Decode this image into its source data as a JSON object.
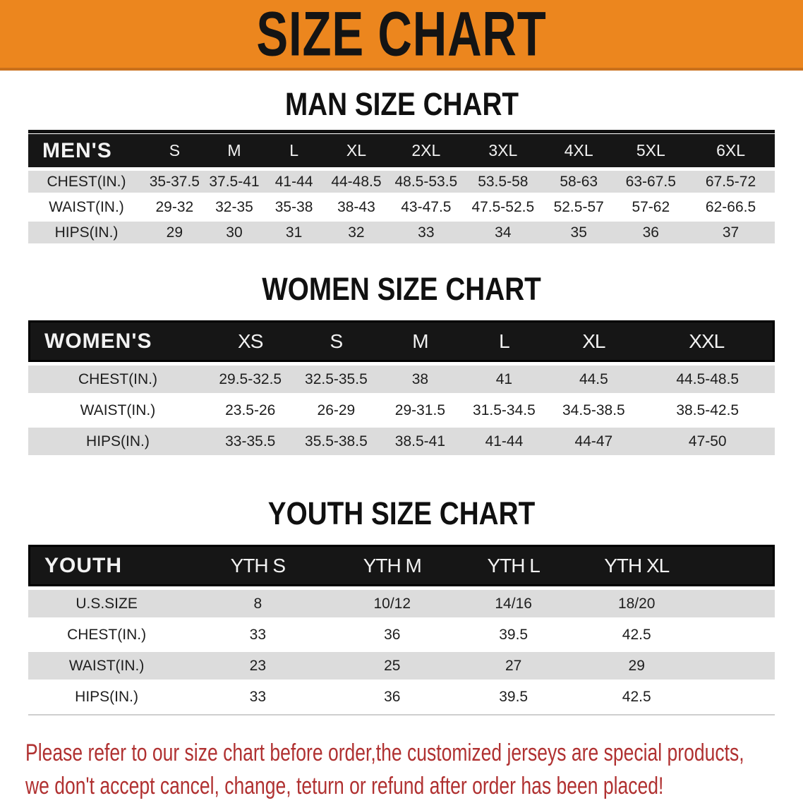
{
  "banner": {
    "title": "SIZE CHART"
  },
  "sections": {
    "men": {
      "heading": "MAN SIZE CHART",
      "table": {
        "label": "MEN'S",
        "columns": [
          "S",
          "M",
          "L",
          "XL",
          "2XL",
          "3XL",
          "4XL",
          "5XL",
          "6XL"
        ],
        "rows": [
          {
            "label": "CHEST(IN.)",
            "values": [
              "35-37.5",
              "37.5-41",
              "41-44",
              "44-48.5",
              "48.5-53.5",
              "53.5-58",
              "58-63",
              "63-67.5",
              "67.5-72"
            ]
          },
          {
            "label": "WAIST(IN.)",
            "values": [
              "29-32",
              "32-35",
              "35-38",
              "38-43",
              "43-47.5",
              "47.5-52.5",
              "52.5-57",
              "57-62",
              "62-66.5"
            ]
          },
          {
            "label": "HIPS(IN.)",
            "values": [
              "29",
              "30",
              "31",
              "32",
              "33",
              "34",
              "35",
              "36",
              "37"
            ]
          }
        ]
      }
    },
    "women": {
      "heading": "WOMEN SIZE CHART",
      "table": {
        "label": "WOMEN'S",
        "columns": [
          "XS",
          "S",
          "M",
          "L",
          "XL",
          "XXL"
        ],
        "rows": [
          {
            "label": "CHEST(IN.)",
            "values": [
              "29.5-32.5",
              "32.5-35.5",
              "38",
              "41",
              "44.5",
              "44.5-48.5"
            ]
          },
          {
            "label": "WAIST(IN.)",
            "values": [
              "23.5-26",
              "26-29",
              "29-31.5",
              "31.5-34.5",
              "34.5-38.5",
              "38.5-42.5"
            ]
          },
          {
            "label": "HIPS(IN.)",
            "values": [
              "33-35.5",
              "35.5-38.5",
              "38.5-41",
              "41-44",
              "44-47",
              "47-50"
            ]
          }
        ]
      }
    },
    "youth": {
      "heading": "YOUTH SIZE CHART",
      "table": {
        "label": "YOUTH",
        "columns": [
          "YTH S",
          "YTH M",
          "YTH L",
          "YTH XL"
        ],
        "rows": [
          {
            "label": "U.S.SIZE",
            "values": [
              "8",
              "10/12",
              "14/16",
              "18/20"
            ]
          },
          {
            "label": "CHEST(IN.)",
            "values": [
              "33",
              "36",
              "39.5",
              "42.5"
            ]
          },
          {
            "label": "WAIST(IN.)",
            "values": [
              "23",
              "25",
              "27",
              "29"
            ]
          },
          {
            "label": "HIPS(IN.)",
            "values": [
              "33",
              "36",
              "39.5",
              "42.5"
            ]
          }
        ]
      }
    }
  },
  "footer": {
    "line1": "Please refer to our size chart before order,the customized jerseys are special products,",
    "line2": "we don't accept cancel, change, teturn or refund after order has been placed!"
  },
  "colors": {
    "banner_orange": "#EC861E",
    "header_black": "#161616",
    "row_gray": "#DCDCDC",
    "footer_red": "#B03131"
  }
}
